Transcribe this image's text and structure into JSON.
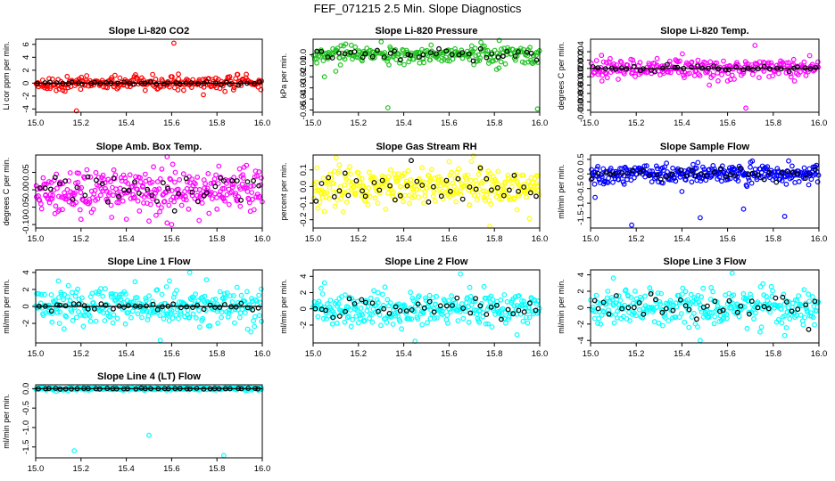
{
  "figure": {
    "title": "FEF_071215  2.5 Min. Slope Diagnostics"
  },
  "chart_data": [
    {
      "type": "scatter",
      "title": "Slope Li-820 CO2",
      "ylabel": "Li cor ppm per min.",
      "xlim": [
        15.0,
        16.0
      ],
      "ylim": [
        -4.5,
        6.8
      ],
      "xticks": [
        "15.0",
        "15.2",
        "15.4",
        "15.6",
        "15.8",
        "16.0"
      ],
      "xtick_values": [
        15.0,
        15.2,
        15.4,
        15.6,
        15.8,
        16.0
      ],
      "yticks": [
        "-4",
        "-2",
        "0",
        "2",
        "4",
        "6"
      ],
      "ytick_values": [
        -4,
        -2,
        0,
        2,
        4,
        6
      ],
      "series_color": "#ff0000",
      "spread": 0.5,
      "n": 240,
      "outliers": [
        [
          15.18,
          -4.3
        ],
        [
          15.61,
          6.2
        ],
        [
          15.74,
          -1.8
        ],
        [
          15.35,
          1.2
        ],
        [
          15.63,
          1.4
        ],
        [
          15.12,
          -1.1
        ]
      ],
      "has_zero_line": true
    },
    {
      "type": "scatter",
      "title": "Slope Li-820 Pressure",
      "ylabel": "kPa per min.",
      "xlim": [
        15.0,
        16.0
      ],
      "ylim": [
        -0.052,
        0.014
      ],
      "xticks": [
        "15.0",
        "15.2",
        "15.4",
        "15.6",
        "15.8",
        "16.0"
      ],
      "xtick_values": [
        15.0,
        15.2,
        15.4,
        15.6,
        15.8,
        16.0
      ],
      "yticks": [
        "-0.05",
        "-0.04",
        "-0.03",
        "-0.02",
        "-0.01",
        "0.0"
      ],
      "ytick_values": [
        -0.05,
        -0.04,
        -0.03,
        -0.02,
        -0.01,
        0.0
      ],
      "series_color": "#22c322",
      "spread": 0.004,
      "n": 260,
      "outliers": [
        [
          15.33,
          -0.048
        ],
        [
          15.99,
          -0.049
        ],
        [
          15.05,
          -0.02
        ],
        [
          15.1,
          -0.015
        ],
        [
          15.82,
          -0.012
        ],
        [
          15.7,
          0.008
        ]
      ],
      "has_zero_line": false
    },
    {
      "type": "scatter",
      "title": "Slope Li-820 Temp.",
      "ylabel": "degrees C per min.",
      "xlim": [
        15.0,
        16.0
      ],
      "ylim": [
        -0.0105,
        0.007
      ],
      "xticks": [
        "15.0",
        "15.2",
        "15.4",
        "15.6",
        "15.8",
        "16.0"
      ],
      "xtick_values": [
        15.0,
        15.2,
        15.4,
        15.6,
        15.8,
        16.0
      ],
      "yticks": [
        "-0.010",
        "-0.008",
        "-0.006",
        "-0.004",
        "-0.002",
        "0.000",
        "0.002",
        "0.004"
      ],
      "ytick_values": [
        -0.01,
        -0.008,
        -0.006,
        -0.004,
        -0.002,
        0.0,
        0.002,
        0.004
      ],
      "series_color": "#ff00ff",
      "spread": 0.0012,
      "n": 260,
      "outliers": [
        [
          15.68,
          -0.0095
        ],
        [
          15.72,
          0.0055
        ],
        [
          15.52,
          -0.004
        ],
        [
          15.6,
          -0.003
        ],
        [
          15.05,
          -0.003
        ]
      ],
      "has_zero_line": true
    },
    {
      "type": "scatter",
      "title": "Slope Amb. Box Temp.",
      "ylabel": "degrees C per min.",
      "xlim": [
        15.0,
        16.0
      ],
      "ylim": [
        -0.11,
        0.1
      ],
      "xticks": [
        "15.0",
        "15.2",
        "15.4",
        "15.6",
        "15.8",
        "16.0"
      ],
      "xtick_values": [
        15.0,
        15.2,
        15.4,
        15.6,
        15.8,
        16.0
      ],
      "yticks": [
        "-0.10",
        "-0.05",
        "0.00",
        "0.05"
      ],
      "ytick_values": [
        -0.1,
        -0.05,
        0.0,
        0.05
      ],
      "series_color": "#ff00ff",
      "spread": 0.03,
      "n": 320,
      "outliers": [
        [
          15.58,
          0.095
        ],
        [
          15.6,
          -0.1
        ],
        [
          15.2,
          -0.085
        ],
        [
          15.5,
          -0.09
        ],
        [
          15.9,
          0.06
        ]
      ],
      "has_zero_line": false
    },
    {
      "type": "scatter",
      "title": "Slope Gas Stream RH",
      "ylabel": "percent per min.",
      "xlim": [
        15.0,
        16.0
      ],
      "ylim": [
        -0.25,
        0.19
      ],
      "xticks": [
        "15.0",
        "15.2",
        "15.4",
        "15.6",
        "15.8",
        "16.0"
      ],
      "xtick_values": [
        15.0,
        15.2,
        15.4,
        15.6,
        15.8,
        16.0
      ],
      "yticks": [
        "-0.2",
        "-0.1",
        "0.0",
        "0.1"
      ],
      "ytick_values": [
        -0.2,
        -0.1,
        0.0,
        0.1
      ],
      "series_color": "#ffff00",
      "spread": 0.06,
      "n": 320,
      "outliers": [
        [
          15.78,
          -0.24
        ],
        [
          15.05,
          -0.15
        ],
        [
          15.6,
          0.15
        ],
        [
          15.9,
          -0.14
        ]
      ],
      "has_zero_line": false
    },
    {
      "type": "scatter",
      "title": "Slope Sample Flow",
      "ylabel": "ml/min per min.",
      "xlim": [
        15.0,
        16.0
      ],
      "ylim": [
        -1.85,
        0.65
      ],
      "xticks": [
        "15.0",
        "15.2",
        "15.4",
        "15.6",
        "15.8",
        "16.0"
      ],
      "xtick_values": [
        15.0,
        15.2,
        15.4,
        15.6,
        15.8,
        16.0
      ],
      "yticks": [
        "-1.5",
        "-1.0",
        "-0.5",
        "0.0",
        "0.5"
      ],
      "ytick_values": [
        -1.5,
        -1.0,
        -0.5,
        0.0,
        0.5
      ],
      "series_color": "#0000ff",
      "spread": 0.15,
      "n": 320,
      "outliers": [
        [
          15.18,
          -1.75
        ],
        [
          15.48,
          -1.5
        ],
        [
          15.67,
          -1.2
        ],
        [
          15.85,
          -1.45
        ],
        [
          15.02,
          -0.8
        ],
        [
          15.4,
          -0.6
        ]
      ],
      "has_zero_line": false
    },
    {
      "type": "scatter",
      "title": "Slope Line 1 Flow",
      "ylabel": "ml/min per min.",
      "xlim": [
        15.0,
        16.0
      ],
      "ylim": [
        -4.3,
        4.3
      ],
      "xticks": [
        "15.0",
        "15.2",
        "15.4",
        "15.6",
        "15.8",
        "16.0"
      ],
      "xtick_values": [
        15.0,
        15.2,
        15.4,
        15.6,
        15.8,
        16.0
      ],
      "yticks": [
        "-2",
        "0",
        "2",
        "4"
      ],
      "ytick_values": [
        -2,
        0,
        2,
        4
      ],
      "series_color": "#00ffff",
      "spread": 1.1,
      "n": 300,
      "outliers": [
        [
          15.55,
          -4.0
        ],
        [
          15.68,
          4.0
        ],
        [
          15.1,
          3.0
        ],
        [
          15.95,
          -3.0
        ]
      ],
      "has_zero_line": true
    },
    {
      "type": "scatter",
      "title": "Slope Line 2 Flow",
      "ylabel": "ml/min per min.",
      "xlim": [
        15.0,
        16.0
      ],
      "ylim": [
        -4.2,
        4.8
      ],
      "xticks": [
        "15.0",
        "15.2",
        "15.4",
        "15.6",
        "15.8",
        "16.0"
      ],
      "xtick_values": [
        15.0,
        15.2,
        15.4,
        15.6,
        15.8,
        16.0
      ],
      "yticks": [
        "-2",
        "0",
        "2",
        "4"
      ],
      "ytick_values": [
        -2,
        0,
        2,
        4
      ],
      "series_color": "#00ffff",
      "spread": 1.0,
      "n": 300,
      "outliers": [
        [
          15.45,
          -4.0
        ],
        [
          15.65,
          4.3
        ],
        [
          15.05,
          3.2
        ],
        [
          15.9,
          -3.2
        ]
      ],
      "has_zero_line": false
    },
    {
      "type": "scatter",
      "title": "Slope Line 3 Flow",
      "ylabel": "ml/min per min.",
      "xlim": [
        15.0,
        16.0
      ],
      "ylim": [
        -4.3,
        4.6
      ],
      "xticks": [
        "15.0",
        "15.2",
        "15.4",
        "15.6",
        "15.8",
        "16.0"
      ],
      "xtick_values": [
        15.0,
        15.2,
        15.4,
        15.6,
        15.8,
        16.0
      ],
      "yticks": [
        "-4",
        "-2",
        "0",
        "2",
        "4"
      ],
      "ytick_values": [
        -4,
        -2,
        0,
        2,
        4
      ],
      "series_color": "#00ffff",
      "spread": 1.1,
      "n": 300,
      "outliers": [
        [
          15.48,
          -4.0
        ],
        [
          15.62,
          4.2
        ],
        [
          15.1,
          3.6
        ],
        [
          15.85,
          -3.4
        ]
      ],
      "has_zero_line": false
    },
    {
      "type": "scatter",
      "title": "Slope Line 4 (LT) Flow",
      "ylabel": "ml/min per min.",
      "xlim": [
        15.0,
        16.0
      ],
      "ylim": [
        -1.78,
        0.1
      ],
      "xticks": [
        "15.0",
        "15.2",
        "15.4",
        "15.6",
        "15.8",
        "16.0"
      ],
      "xtick_values": [
        15.0,
        15.2,
        15.4,
        15.6,
        15.8,
        16.0
      ],
      "yticks": [
        "-1.5",
        "-1.0",
        "-0.5",
        "0.0"
      ],
      "ytick_values": [
        -1.5,
        -1.0,
        -0.5,
        0.0
      ],
      "series_color": "#00ffff",
      "spread": 0.02,
      "n": 260,
      "outliers": [
        [
          15.17,
          -1.6
        ],
        [
          15.5,
          -1.2
        ],
        [
          15.83,
          -1.72
        ]
      ],
      "has_zero_line": true
    }
  ]
}
